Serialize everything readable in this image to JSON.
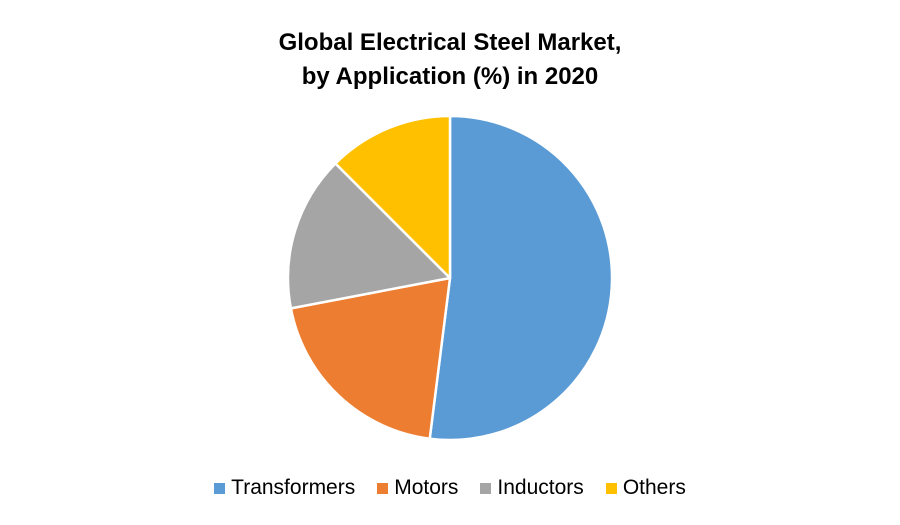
{
  "chart_data": {
    "type": "pie",
    "title_lines": [
      "Global Electrical Steel Market,",
      "by Application (%) in 2020"
    ],
    "categories": [
      "Transformers",
      "Motors",
      "Inductors",
      "Others"
    ],
    "values": [
      52,
      20,
      15.5,
      12.5
    ],
    "colors": [
      "#5B9BD5",
      "#ED7D31",
      "#A5A5A5",
      "#FFC000"
    ],
    "legend_position": "bottom",
    "start_angle_deg": 0,
    "direction": "clockwise"
  }
}
